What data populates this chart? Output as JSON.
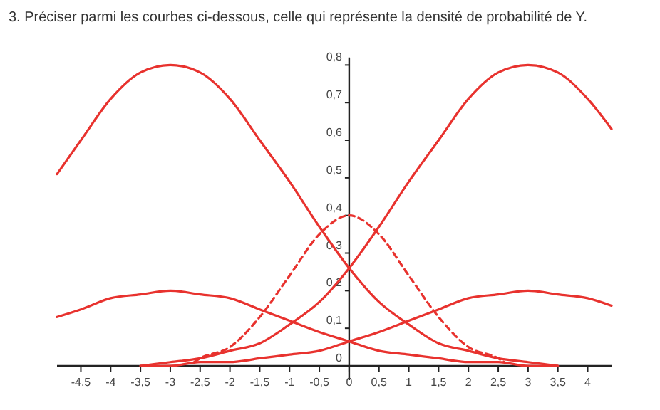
{
  "chart_data": {
    "type": "line",
    "title": "3. Préciser parmi les courbes ci-dessous, celle qui représente la densité de probabilité de Y.",
    "xlim": [
      -4.9,
      4.4
    ],
    "ylim": [
      0,
      0.82
    ],
    "xticks": [
      {
        "value": -4.5,
        "label": "-4,5"
      },
      -4,
      {
        "value": -3.5,
        "label": "-3,5"
      },
      -3,
      {
        "value": -2.5,
        "label": "-2,5"
      },
      -2,
      {
        "value": -1.5,
        "label": "-1,5"
      },
      -1,
      {
        "value": -0.5,
        "label": "-0,5"
      },
      0,
      {
        "value": 0.5,
        "label": "0,5"
      },
      1,
      {
        "value": 1.5,
        "label": "1,5"
      },
      2,
      {
        "value": 2.5,
        "label": "2,5"
      },
      3,
      {
        "value": 3.5,
        "label": "3,5"
      },
      4
    ],
    "yticks": [
      0,
      {
        "value": 0.1,
        "label": "0,1"
      },
      {
        "value": 0.2,
        "label": "0,2"
      },
      {
        "value": 0.3,
        "label": "0,3"
      },
      {
        "value": 0.4,
        "label": "0,4"
      },
      {
        "value": 0.5,
        "label": "0,5"
      },
      {
        "value": 0.6,
        "label": "0,6"
      },
      {
        "value": 0.7,
        "label": "0,7"
      },
      {
        "value": 0.8,
        "label": "0,8"
      }
    ],
    "grid": false,
    "series": [
      {
        "color": "#e8322e",
        "line_style": "solid",
        "x": [
          -4.9,
          -4.5,
          -4,
          -3.5,
          -3,
          -2.5,
          -2,
          -1.5,
          -1,
          -0.5,
          0,
          0.5,
          1,
          1.5,
          2,
          2.5,
          3,
          3.5
        ],
        "values": [
          0.51,
          0.6,
          0.71,
          0.78,
          0.8,
          0.78,
          0.71,
          0.6,
          0.49,
          0.37,
          0.26,
          0.17,
          0.11,
          0.06,
          0.04,
          0.02,
          0.01,
          0.0
        ]
      },
      {
        "color": "#e8322e",
        "line_style": "solid",
        "x": [
          -3.5,
          -3,
          -2.5,
          -2,
          -1.5,
          -1,
          -0.5,
          0,
          0.5,
          1,
          1.5,
          2,
          2.5,
          3,
          3.5,
          4,
          4.4
        ],
        "values": [
          0.0,
          0.01,
          0.02,
          0.04,
          0.06,
          0.11,
          0.17,
          0.26,
          0.37,
          0.49,
          0.6,
          0.71,
          0.78,
          0.8,
          0.78,
          0.71,
          0.63
        ]
      },
      {
        "color": "#e8322e",
        "line_style": "solid",
        "x": [
          -4.9,
          -4.5,
          -4,
          -3.5,
          -3,
          -2.5,
          -2,
          -1.5,
          -1,
          -0.5,
          0,
          0.5,
          1,
          1.5,
          2,
          2.5,
          3,
          3.5
        ],
        "values": [
          0.13,
          0.15,
          0.18,
          0.19,
          0.2,
          0.19,
          0.18,
          0.15,
          0.12,
          0.09,
          0.065,
          0.04,
          0.03,
          0.02,
          0.01,
          0.01,
          0.0,
          0.0
        ]
      },
      {
        "color": "#e8322e",
        "line_style": "solid",
        "x": [
          -3.5,
          -3,
          -2.5,
          -2,
          -1.5,
          -1,
          -0.5,
          0,
          0.5,
          1,
          1.5,
          2,
          2.5,
          3,
          3.5,
          4,
          4.4
        ],
        "values": [
          0.0,
          0.0,
          0.01,
          0.01,
          0.02,
          0.03,
          0.04,
          0.065,
          0.09,
          0.12,
          0.15,
          0.18,
          0.19,
          0.2,
          0.19,
          0.18,
          0.16
        ]
      },
      {
        "color": "#e8322e",
        "line_style": "dashed",
        "x": [
          -2.6,
          -2.5,
          -2,
          -1.5,
          -1,
          -0.5,
          0,
          0.5,
          1,
          1.5,
          2,
          2.5,
          2.6
        ],
        "values": [
          0.01,
          0.02,
          0.05,
          0.13,
          0.24,
          0.35,
          0.4,
          0.35,
          0.24,
          0.13,
          0.05,
          0.02,
          0.01
        ]
      }
    ]
  }
}
